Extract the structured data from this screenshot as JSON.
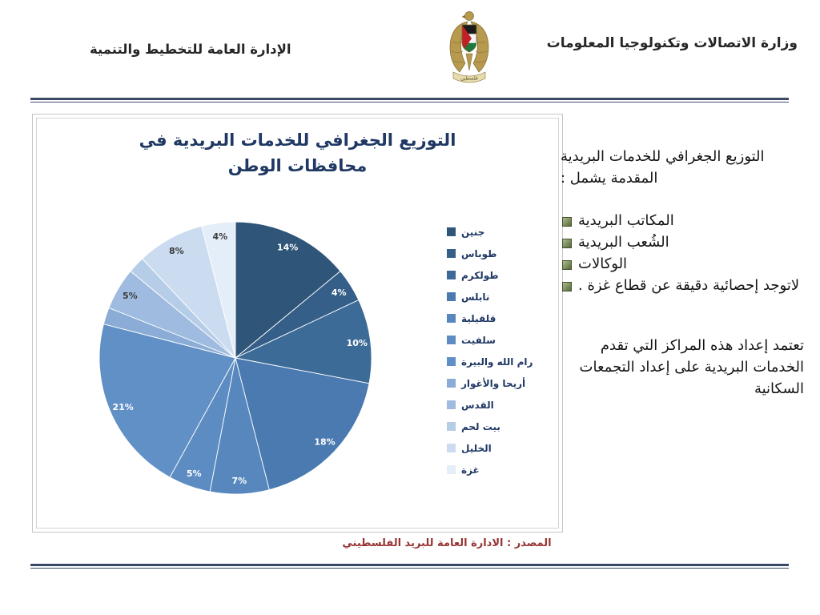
{
  "header": {
    "ministry": "وزارة الاتصالات وتكنولوجيا المعلومات",
    "department": "الإدارة العامة للتخطيط والتنمية",
    "emblem_icon": "palestine-coat-of-arms",
    "emblem_banner": "فلسطين"
  },
  "sidebar_text": {
    "intro": "التوزيع الجغرافي للخدمات البريدية المقدمة يشمل :",
    "bullets": [
      "المكاتب البريدية",
      "الشُعب البريدية",
      "الوكالات",
      "لاتوجد إحصائية دقيقة عن قطاع غزة ."
    ],
    "paragraph": "تعتمد إعداد هذه المراكز التي تقدم الخدمات البريدية على إعداد التجمعات السكانية"
  },
  "chart_data": {
    "type": "pie",
    "title": "التوزيع الجغرافي للخدمات البريدية في محافظات الوطن",
    "categories": [
      "جنين",
      "طوباس",
      "طولكرم",
      "نابلس",
      "قلقيلية",
      "سلفيت",
      "رام الله والبيرة",
      "أريحا والأغوار",
      "القدس",
      "بيت لحم",
      "الخليل",
      "غزة"
    ],
    "values": [
      14,
      4,
      10,
      18,
      7,
      5,
      21,
      2,
      5,
      2,
      8,
      4
    ],
    "unit": "%",
    "colors": [
      "#2f5579",
      "#355f88",
      "#3d6b97",
      "#4a7ab0",
      "#5787bd",
      "#5d8cc2",
      "#6190c7",
      "#8aacd6",
      "#9fbce0",
      "#b6cde8",
      "#cbdcf0",
      "#e4eef8"
    ],
    "legend_position": "right",
    "label_min_value": 3,
    "start_angle_deg": 0,
    "direction": "clockwise"
  },
  "source": "المصدر : الادارة العامة للبريد الفلسطيني",
  "accent_colors": {
    "divider": "#3a4a66",
    "chart_title": "#1f3864",
    "legend_text": "#1f3864",
    "source_text": "#963634"
  }
}
